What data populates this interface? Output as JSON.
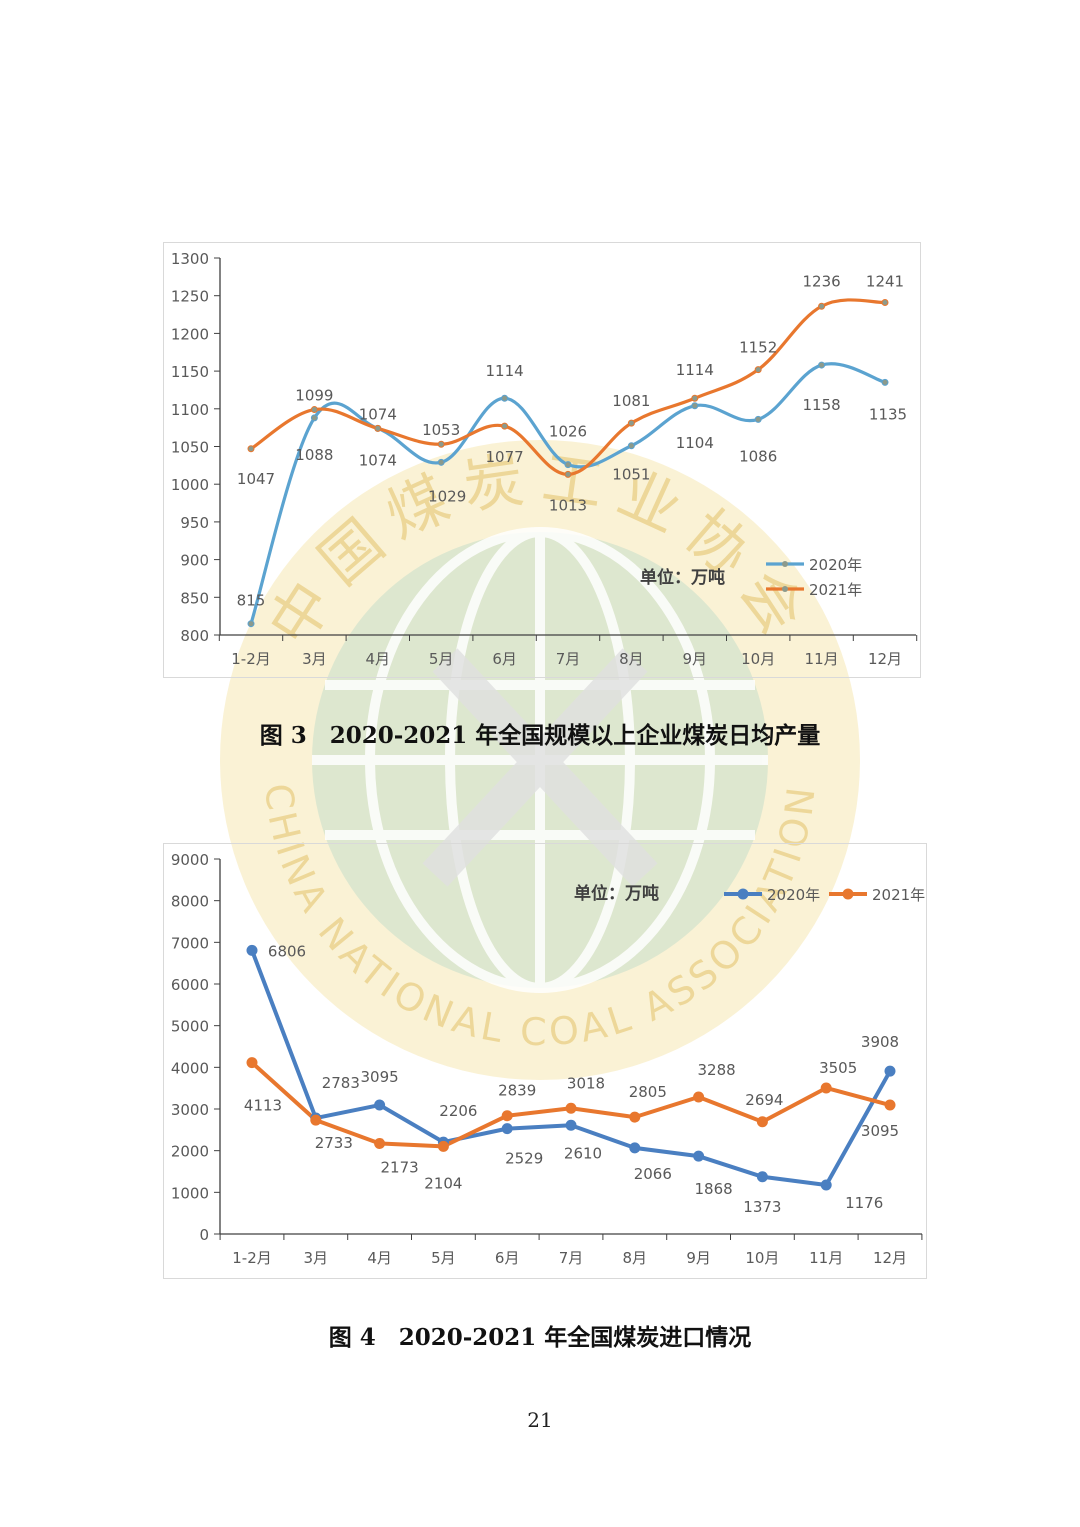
{
  "colors": {
    "series_2020_fig3": "#5ba3d0",
    "series_2021_fig3": "#e8772e",
    "series_2020_fig4": "#4a7fc1",
    "series_2021_fig4": "#e8772e",
    "label_text": "#595959",
    "axis": "#404040"
  },
  "watermark": {
    "text_top": "中国煤炭工业协会",
    "text_bottom": "CHINA NATIONAL COAL ASSOCIATION",
    "colors": {
      "ring": "#f4e2a6",
      "globe": "#d3e6d7",
      "lines": "#ffffff"
    }
  },
  "chart_data": [
    {
      "type": "line",
      "title": "2020-2021 年全国规模以上企业煤炭日均产量",
      "unit_note": "单位：万吨",
      "categories": [
        "1-2月",
        "3月",
        "4月",
        "5月",
        "6月",
        "7月",
        "8月",
        "9月",
        "10月",
        "11月",
        "12月"
      ],
      "series": [
        {
          "name": "2020年",
          "values": [
            815,
            1088,
            1074,
            1029,
            1114,
            1026,
            1051,
            1104,
            1086,
            1158,
            1135
          ]
        },
        {
          "name": "2021年",
          "values": [
            1047,
            1099,
            1074,
            1053,
            1077,
            1013,
            1081,
            1114,
            1152,
            1236,
            1241
          ]
        }
      ],
      "ylim": [
        800,
        1300
      ],
      "yticks": [
        800,
        850,
        900,
        950,
        1000,
        1050,
        1100,
        1150,
        1200,
        1250,
        1300
      ],
      "smooth": true,
      "legend_position": "right",
      "labels_2020": [
        "815",
        "1088",
        "1074",
        "1029",
        "1114",
        "1026",
        "1051",
        "1104",
        "1086",
        "1158",
        "1135"
      ],
      "labels_2021": [
        "1047",
        "1099",
        "1074",
        "1053",
        "1077",
        "1013",
        "1081",
        "1114",
        "1152",
        "1236",
        "1241"
      ]
    },
    {
      "type": "line",
      "title": "2020-2021 年全国煤炭进口情况",
      "unit_note": "单位：万吨",
      "categories": [
        "1-2月",
        "3月",
        "4月",
        "5月",
        "6月",
        "7月",
        "8月",
        "9月",
        "10月",
        "11月",
        "12月"
      ],
      "series": [
        {
          "name": "2020年",
          "values": [
            6806,
            2783,
            3095,
            2206,
            2529,
            2610,
            2066,
            1868,
            1373,
            1176,
            3908
          ]
        },
        {
          "name": "2021年",
          "values": [
            4113,
            2733,
            2173,
            2104,
            2839,
            3018,
            2805,
            3288,
            2694,
            3505,
            3095
          ]
        }
      ],
      "ylim": [
        0,
        9000
      ],
      "yticks": [
        0,
        1000,
        2000,
        3000,
        4000,
        5000,
        6000,
        7000,
        8000,
        9000
      ],
      "smooth": false,
      "legend_position": "top-right",
      "labels_2020": [
        "6806",
        "2783",
        "3095",
        "2206",
        "2529",
        "2610",
        "2066",
        "1868",
        "1373",
        "1176",
        "3908"
      ],
      "labels_2021": [
        "4113",
        "2733",
        "2173",
        "2104",
        "2839",
        "3018",
        "2805",
        "3288",
        "2694",
        "3505",
        "3095"
      ]
    }
  ],
  "captions": {
    "fig3": "图 3　2020-2021 年全国规模以上企业煤炭日均产量",
    "fig4": "图 4　2020-2021 年全国煤炭进口情况"
  },
  "page_number": "21"
}
